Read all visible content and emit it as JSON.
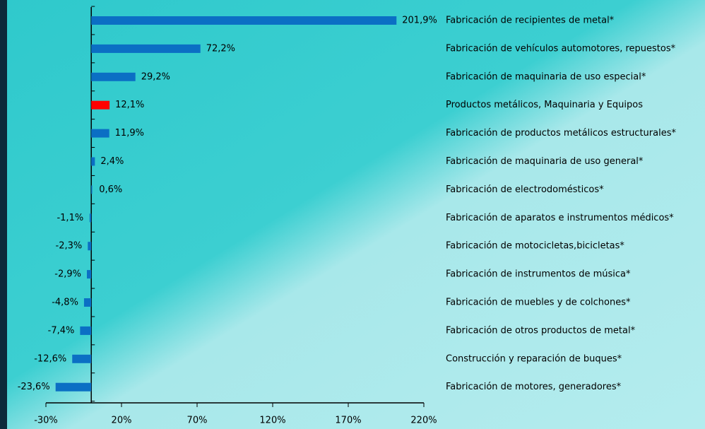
{
  "chart_data": {
    "type": "barh",
    "categories": [
      "Fabricación de recipientes de metal*",
      "Fabricación de vehículos automotores, repuestos*",
      "Fabricación de maquinaria de uso especial*",
      "Productos metálicos, Maquinaria y Equipos",
      "Fabricación de productos metálicos estructurales*",
      "Fabricación de maquinaria de uso general*",
      "Fabricación de electrodomésticos*",
      "Fabricación de aparatos e instrumentos médicos*",
      "Fabricación de motocicletas,bicicletas*",
      "Fabricación de instrumentos de música*",
      "Fabricación de muebles y de colchones*",
      "Fabricación de otros productos de metal*",
      "Construcción y reparación de buques*",
      "Fabricación de motores, generadores*"
    ],
    "values": [
      201.9,
      72.2,
      29.2,
      12.1,
      11.9,
      2.4,
      0.6,
      -1.1,
      -2.3,
      -2.9,
      -4.8,
      -7.4,
      -12.6,
      -23.6
    ],
    "value_labels": [
      "201,9%",
      "72,2%",
      "29,2%",
      "12,1%",
      "11,9%",
      "2,4%",
      "0,6%",
      "-1,1%",
      "-2,3%",
      "-2,9%",
      "-4,8%",
      "-7,4%",
      "-12,6%",
      "-23,6%"
    ],
    "colors": [
      "#0b6fc4",
      "#0b6fc4",
      "#0b6fc4",
      "#ff0000",
      "#0b6fc4",
      "#0b6fc4",
      "#0b6fc4",
      "#0b6fc4",
      "#0b6fc4",
      "#0b6fc4",
      "#0b6fc4",
      "#0b6fc4",
      "#0b6fc4",
      "#0b6fc4"
    ],
    "xlim": [
      -30,
      220
    ],
    "xticks": [
      {
        "value": -30,
        "label": "-30%"
      },
      {
        "value": 20,
        "label": "20%"
      },
      {
        "value": 70,
        "label": "70%"
      },
      {
        "value": 120,
        "label": "120%"
      },
      {
        "value": 170,
        "label": "170%"
      },
      {
        "value": 220,
        "label": "220%"
      }
    ]
  }
}
